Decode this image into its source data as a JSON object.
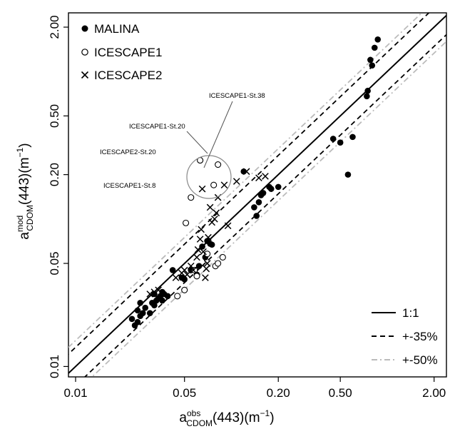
{
  "chart_data": {
    "type": "scatter",
    "x_scale": "log",
    "y_scale": "log",
    "xlim": [
      0.009,
      2.4
    ],
    "ylim": [
      0.0085,
      2.5
    ],
    "x_ticks": [
      0.01,
      0.05,
      0.2,
      0.5,
      2.0
    ],
    "x_tick_labels": [
      "0.01",
      "0.05",
      "0.20",
      "0.50",
      "2.00"
    ],
    "y_ticks": [
      0.01,
      0.05,
      0.2,
      0.5,
      2.0
    ],
    "y_tick_labels": [
      "0.01",
      "0.05",
      "0.20",
      "0.50",
      "2.00"
    ],
    "xlabel": {
      "main": "a",
      "sup": "obs",
      "sub": "CDOM",
      "rest": "(443)(m",
      "exp": "−1",
      "close": ")"
    },
    "ylabel": {
      "main": "a",
      "sup": "mod",
      "sub": "CDOM",
      "rest": "(443)(m",
      "exp": "−1",
      "close": ")"
    },
    "series": [
      {
        "name": "MALINA",
        "marker": "filled-circle",
        "points": [
          [
            0.023,
            0.021
          ],
          [
            0.024,
            0.019
          ],
          [
            0.025,
            0.02
          ],
          [
            0.025,
            0.024
          ],
          [
            0.026,
            0.022
          ],
          [
            0.026,
            0.027
          ],
          [
            0.027,
            0.023
          ],
          [
            0.028,
            0.025
          ],
          [
            0.03,
            0.023
          ],
          [
            0.031,
            0.027
          ],
          [
            0.032,
            0.026
          ],
          [
            0.032,
            0.031
          ],
          [
            0.033,
            0.028
          ],
          [
            0.034,
            0.029
          ],
          [
            0.035,
            0.03
          ],
          [
            0.036,
            0.028
          ],
          [
            0.036,
            0.032
          ],
          [
            0.037,
            0.031
          ],
          [
            0.039,
            0.03
          ],
          [
            0.042,
            0.045
          ],
          [
            0.048,
            0.04
          ],
          [
            0.05,
            0.039
          ],
          [
            0.055,
            0.045
          ],
          [
            0.06,
            0.042
          ],
          [
            0.062,
            0.048
          ],
          [
            0.065,
            0.065
          ],
          [
            0.068,
            0.055
          ],
          [
            0.07,
            0.071
          ],
          [
            0.073,
            0.068
          ],
          [
            0.075,
            0.067
          ],
          [
            0.12,
            0.21
          ],
          [
            0.14,
            0.12
          ],
          [
            0.145,
            0.105
          ],
          [
            0.15,
            0.13
          ],
          [
            0.155,
            0.145
          ],
          [
            0.16,
            0.15
          ],
          [
            0.175,
            0.165
          ],
          [
            0.18,
            0.16
          ],
          [
            0.2,
            0.165
          ],
          [
            0.45,
            0.35
          ],
          [
            0.5,
            0.33
          ],
          [
            0.56,
            0.2
          ],
          [
            0.6,
            0.36
          ],
          [
            0.74,
            0.68
          ],
          [
            0.75,
            0.74
          ],
          [
            0.78,
            1.2
          ],
          [
            0.8,
            1.1
          ],
          [
            0.83,
            1.45
          ],
          [
            0.87,
            1.65
          ]
        ]
      },
      {
        "name": "ICESCAPE1",
        "marker": "open-circle",
        "points": [
          [
            0.045,
            0.03
          ],
          [
            0.05,
            0.033
          ],
          [
            0.051,
            0.094
          ],
          [
            0.055,
            0.14
          ],
          [
            0.058,
            0.045
          ],
          [
            0.06,
            0.041
          ],
          [
            0.063,
            0.25
          ],
          [
            0.07,
            0.058
          ],
          [
            0.077,
            0.17
          ],
          [
            0.079,
            0.048
          ],
          [
            0.082,
            0.05
          ],
          [
            0.082,
            0.234
          ],
          [
            0.088,
            0.055
          ]
        ]
      },
      {
        "name": "ICESCAPE2",
        "marker": "cross",
        "points": [
          [
            0.03,
            0.031
          ],
          [
            0.032,
            0.032
          ],
          [
            0.034,
            0.033
          ],
          [
            0.044,
            0.04
          ],
          [
            0.048,
            0.043
          ],
          [
            0.05,
            0.045
          ],
          [
            0.052,
            0.042
          ],
          [
            0.055,
            0.048
          ],
          [
            0.057,
            0.045
          ],
          [
            0.06,
            0.055
          ],
          [
            0.061,
            0.062
          ],
          [
            0.063,
            0.073
          ],
          [
            0.064,
            0.085
          ],
          [
            0.065,
            0.16
          ],
          [
            0.066,
            0.06
          ],
          [
            0.068,
            0.04
          ],
          [
            0.069,
            0.046
          ],
          [
            0.07,
            0.05
          ],
          [
            0.071,
            0.075
          ],
          [
            0.073,
            0.12
          ],
          [
            0.075,
            0.095
          ],
          [
            0.078,
            0.1
          ],
          [
            0.08,
            0.11
          ],
          [
            0.082,
            0.14
          ],
          [
            0.09,
            0.17
          ],
          [
            0.095,
            0.09
          ],
          [
            0.108,
            0.18
          ],
          [
            0.125,
            0.21
          ],
          [
            0.15,
            0.19
          ],
          [
            0.165,
            0.195
          ]
        ]
      }
    ],
    "reference_lines": [
      {
        "name": "1:1",
        "factor": 1.0,
        "style": "solid",
        "color": "#000000"
      },
      {
        "name": "+-35%",
        "factor": 1.35,
        "style": "dashed",
        "color": "#000000"
      },
      {
        "name": "+-50%",
        "factor": 1.5,
        "style": "dashdot",
        "color": "#bbbbbb"
      }
    ],
    "legend_markers": {
      "position": "top-left",
      "entries": [
        "MALINA",
        "ICESCAPE1",
        "ICESCAPE2"
      ]
    },
    "legend_lines": {
      "position": "bottom-right",
      "entries": [
        "1:1",
        "+-35%",
        "+-50%"
      ]
    },
    "annotations": [
      {
        "text": "ICESCAPE1-St.38",
        "target": [
          0.082,
          0.234
        ]
      },
      {
        "text": "ICESCAPE1-St.20",
        "target": [
          0.063,
          0.25
        ]
      },
      {
        "text": "ICESCAPE2-St.20",
        "target": [
          0.065,
          0.16
        ]
      },
      {
        "text": "ICESCAPE1-St.8",
        "target": [
          0.055,
          0.14
        ]
      }
    ],
    "grid": false
  }
}
